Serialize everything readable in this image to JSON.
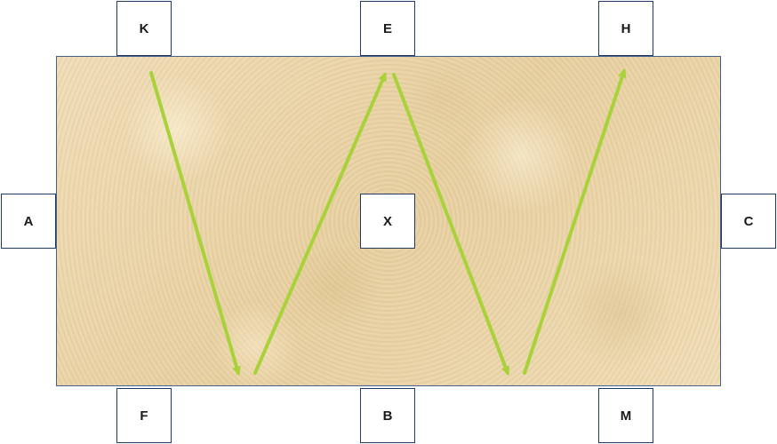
{
  "arena": {
    "markers": {
      "k": "K",
      "e": "E",
      "h": "H",
      "a": "A",
      "x": "X",
      "c": "C",
      "f": "F",
      "b": "B",
      "m": "M"
    },
    "route_color": "#a9d23a",
    "surface_color": "#ecd6ab",
    "route_legs": [
      {
        "from": "near K",
        "to": "near F"
      },
      {
        "from": "near F",
        "to": "near E"
      },
      {
        "from": "near E",
        "to": "near B/M"
      },
      {
        "from": "near M",
        "to": "near H"
      }
    ]
  }
}
